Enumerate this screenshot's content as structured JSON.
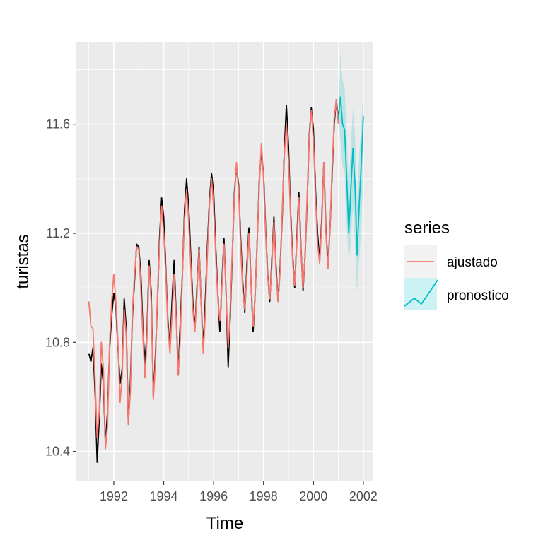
{
  "chart_data": {
    "type": "line",
    "xlabel": "Time",
    "ylabel": "turistas",
    "xlim": [
      1990.5,
      2002.4
    ],
    "ylim": [
      10.29,
      11.9
    ],
    "x_ticks": [
      1992,
      1994,
      1996,
      1998,
      2000,
      2002
    ],
    "y_ticks": [
      10.4,
      10.8,
      11.2,
      11.6
    ],
    "x_tick_labels": [
      "1992",
      "1994",
      "1996",
      "1998",
      "2000",
      "2002"
    ],
    "y_tick_labels": [
      "10.4",
      "10.8",
      "11.2",
      "11.6"
    ],
    "grid": true,
    "legend": {
      "title": "series",
      "position": "right",
      "entries": [
        {
          "label": "ajustado",
          "color": "#F8766D"
        },
        {
          "label": "pronostico",
          "color": "#00BFC4"
        }
      ]
    },
    "series": [
      {
        "color": "#000000",
        "x": [
          1991.0,
          1991.0833,
          1991.1667,
          1991.25,
          1991.3333,
          1991.4167,
          1991.5,
          1991.5833,
          1991.6667,
          1991.75,
          1991.8333,
          1991.9167,
          1992.0,
          1992.0833,
          1992.1667,
          1992.25,
          1992.3333,
          1992.4167,
          1992.5,
          1992.5833,
          1992.6667,
          1992.75,
          1992.8333,
          1992.9167,
          1993.0,
          1993.0833,
          1993.1667,
          1993.25,
          1993.3333,
          1993.4167,
          1993.5,
          1993.5833,
          1993.6667,
          1993.75,
          1993.8333,
          1993.9167,
          1994.0,
          1994.0833,
          1994.1667,
          1994.25,
          1994.3333,
          1994.4167,
          1994.5,
          1994.5833,
          1994.6667,
          1994.75,
          1994.8333,
          1994.9167,
          1995.0,
          1995.0833,
          1995.1667,
          1995.25,
          1995.3333,
          1995.4167,
          1995.5,
          1995.5833,
          1995.6667,
          1995.75,
          1995.8333,
          1995.9167,
          1996.0,
          1996.0833,
          1996.1667,
          1996.25,
          1996.3333,
          1996.4167,
          1996.5,
          1996.5833,
          1996.6667,
          1996.75,
          1996.8333,
          1996.9167,
          1997.0,
          1997.0833,
          1997.1667,
          1997.25,
          1997.3333,
          1997.4167,
          1997.5,
          1997.5833,
          1997.6667,
          1997.75,
          1997.8333,
          1997.9167,
          1998.0,
          1998.0833,
          1998.1667,
          1998.25,
          1998.3333,
          1998.4167,
          1998.5,
          1998.5833,
          1998.6667,
          1998.75,
          1998.8333,
          1998.9167,
          1999.0,
          1999.0833,
          1999.1667,
          1999.25,
          1999.3333,
          1999.4167,
          1999.5,
          1999.5833,
          1999.6667,
          1999.75,
          1999.8333,
          1999.9167,
          2000.0,
          2000.0833,
          2000.1667,
          2000.25,
          2000.3333,
          2000.4167,
          2000.5,
          2000.5833,
          2000.6667,
          2000.75,
          2000.8333,
          2000.9167,
          2001.0
        ],
        "values": [
          10.76,
          10.73,
          10.78,
          10.62,
          10.36,
          10.52,
          10.72,
          10.65,
          10.42,
          10.55,
          10.78,
          10.9,
          10.98,
          10.93,
          10.78,
          10.65,
          10.7,
          10.96,
          10.85,
          10.5,
          10.66,
          10.9,
          11.03,
          11.16,
          11.15,
          11.05,
          10.85,
          10.72,
          10.85,
          11.1,
          10.98,
          10.6,
          10.75,
          10.95,
          11.18,
          11.33,
          11.26,
          11.07,
          10.88,
          10.78,
          10.95,
          11.1,
          10.9,
          10.68,
          10.88,
          11.05,
          11.28,
          11.4,
          11.3,
          11.12,
          10.95,
          10.85,
          11.0,
          11.15,
          10.95,
          10.78,
          10.95,
          11.15,
          11.32,
          11.42,
          11.35,
          11.15,
          10.98,
          10.84,
          11.02,
          11.18,
          10.98,
          10.71,
          10.9,
          11.12,
          11.35,
          11.44,
          11.38,
          11.18,
          11.02,
          10.91,
          11.08,
          11.22,
          11.02,
          10.84,
          10.98,
          11.18,
          11.4,
          11.5,
          11.42,
          11.22,
          11.05,
          10.95,
          11.1,
          11.26,
          11.08,
          10.95,
          11.08,
          11.26,
          11.5,
          11.67,
          11.52,
          11.28,
          11.12,
          11.0,
          11.18,
          11.35,
          11.15,
          10.99,
          11.12,
          11.32,
          11.56,
          11.66,
          11.58,
          11.36,
          11.2,
          11.1,
          11.25,
          11.46,
          11.22,
          11.08,
          11.22,
          11.42,
          11.6,
          11.69,
          11.62
        ]
      },
      {
        "name": "ajustado",
        "color": "#F8766D",
        "x": [
          1991.0,
          1991.0833,
          1991.1667,
          1991.25,
          1991.3333,
          1991.4167,
          1991.5,
          1991.5833,
          1991.6667,
          1991.75,
          1991.8333,
          1991.9167,
          1992.0,
          1992.0833,
          1992.1667,
          1992.25,
          1992.3333,
          1992.4167,
          1992.5,
          1992.5833,
          1992.6667,
          1992.75,
          1992.8333,
          1992.9167,
          1993.0,
          1993.0833,
          1993.1667,
          1993.25,
          1993.3333,
          1993.4167,
          1993.5,
          1993.5833,
          1993.6667,
          1993.75,
          1993.8333,
          1993.9167,
          1994.0,
          1994.0833,
          1994.1667,
          1994.25,
          1994.3333,
          1994.4167,
          1994.5,
          1994.5833,
          1994.6667,
          1994.75,
          1994.8333,
          1994.9167,
          1995.0,
          1995.0833,
          1995.1667,
          1995.25,
          1995.3333,
          1995.4167,
          1995.5,
          1995.5833,
          1995.6667,
          1995.75,
          1995.8333,
          1995.9167,
          1996.0,
          1996.0833,
          1996.1667,
          1996.25,
          1996.3333,
          1996.4167,
          1996.5,
          1996.5833,
          1996.6667,
          1996.75,
          1996.8333,
          1996.9167,
          1997.0,
          1997.0833,
          1997.1667,
          1997.25,
          1997.3333,
          1997.4167,
          1997.5,
          1997.5833,
          1997.6667,
          1997.75,
          1997.8333,
          1997.9167,
          1998.0,
          1998.0833,
          1998.1667,
          1998.25,
          1998.3333,
          1998.4167,
          1998.5,
          1998.5833,
          1998.6667,
          1998.75,
          1998.8333,
          1998.9167,
          1999.0,
          1999.0833,
          1999.1667,
          1999.25,
          1999.3333,
          1999.4167,
          1999.5,
          1999.5833,
          1999.6667,
          1999.75,
          1999.8333,
          1999.9167,
          2000.0,
          2000.0833,
          2000.1667,
          2000.25,
          2000.3333,
          2000.4167,
          2000.5,
          2000.5833,
          2000.6667,
          2000.75,
          2000.8333,
          2000.9167,
          2001.0
        ],
        "values": [
          10.95,
          10.86,
          10.85,
          10.66,
          10.45,
          10.55,
          10.8,
          10.7,
          10.41,
          10.5,
          10.8,
          10.95,
          11.05,
          10.95,
          10.8,
          10.58,
          10.68,
          10.92,
          10.82,
          10.5,
          10.62,
          10.92,
          11.05,
          11.15,
          11.14,
          11.0,
          10.82,
          10.67,
          10.82,
          11.08,
          10.95,
          10.59,
          10.72,
          10.98,
          11.15,
          11.3,
          11.2,
          11.05,
          10.86,
          10.76,
          10.9,
          11.05,
          10.88,
          10.68,
          10.82,
          11.05,
          11.25,
          11.36,
          11.25,
          11.08,
          10.92,
          10.84,
          10.98,
          11.14,
          10.95,
          10.76,
          10.9,
          11.12,
          11.3,
          11.4,
          11.3,
          11.12,
          10.96,
          10.88,
          11.0,
          11.16,
          10.98,
          10.78,
          10.92,
          11.14,
          11.33,
          11.46,
          11.36,
          11.15,
          10.99,
          10.92,
          11.05,
          11.2,
          11.02,
          10.86,
          10.98,
          11.18,
          11.38,
          11.53,
          11.4,
          11.2,
          11.04,
          10.96,
          11.08,
          11.24,
          11.06,
          10.95,
          11.06,
          11.28,
          11.48,
          11.6,
          11.47,
          11.26,
          11.1,
          11.01,
          11.16,
          11.33,
          11.14,
          11.0,
          11.12,
          11.34,
          11.55,
          11.65,
          11.54,
          11.33,
          11.16,
          11.09,
          11.23,
          11.46,
          11.2,
          11.07,
          11.22,
          11.44,
          11.62,
          11.69,
          11.6
        ]
      },
      {
        "name": "pronostico",
        "color": "#00BFC4",
        "x": [
          2001.0,
          2001.0833,
          2001.1667,
          2001.25,
          2001.3333,
          2001.4167,
          2001.5,
          2001.5833,
          2001.6667,
          2001.75,
          2001.8333,
          2001.9167,
          2002.0
        ],
        "values": [
          11.62,
          11.7,
          11.6,
          11.58,
          11.4,
          11.2,
          11.36,
          11.51,
          11.38,
          11.12,
          11.3,
          11.45,
          11.63
        ],
        "lower": [
          11.62,
          11.54,
          11.45,
          11.42,
          11.22,
          11.1,
          11.16,
          11.3,
          11.16,
          10.98,
          11.1,
          11.22,
          11.42
        ],
        "upper": [
          11.62,
          11.86,
          11.76,
          11.74,
          11.56,
          11.38,
          11.52,
          11.66,
          11.56,
          11.3,
          11.48,
          11.6,
          11.72
        ]
      }
    ]
  }
}
